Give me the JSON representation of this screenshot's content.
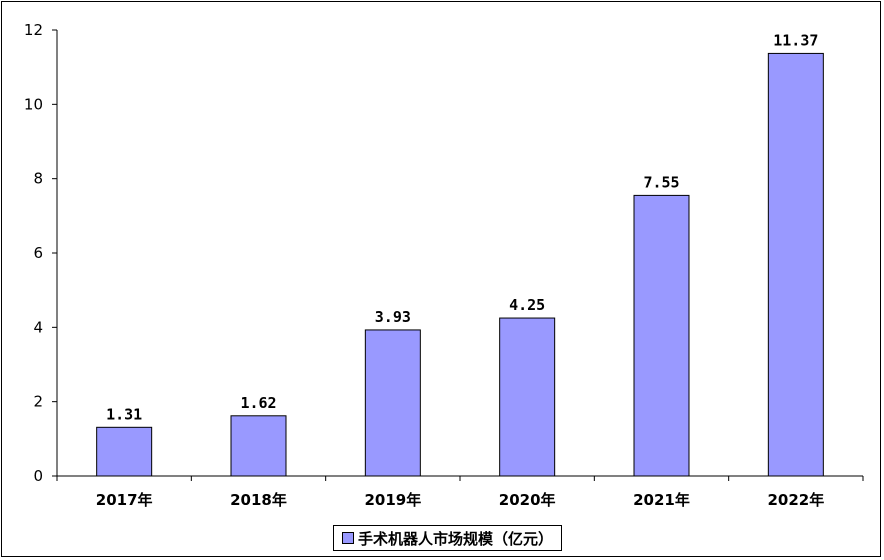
{
  "chart_data": {
    "type": "bar",
    "categories": [
      "2017年",
      "2018年",
      "2019年",
      "2020年",
      "2021年",
      "2022年"
    ],
    "series": [
      {
        "name": "手术机器人市场规模（亿元）",
        "values": [
          1.31,
          1.62,
          3.93,
          4.25,
          7.55,
          11.37
        ],
        "value_labels": [
          "1.31",
          "1.62",
          "3.93",
          "4.25",
          "7.55",
          "11.37"
        ]
      }
    ],
    "ylim": [
      0,
      12
    ],
    "yticks": [
      "0",
      "2",
      "4",
      "6",
      "8",
      "10",
      "12"
    ],
    "grid": false,
    "legend_position": "bottom-center",
    "colors": {
      "bar_fill": "#9999ff",
      "bar_stroke": "#000000"
    }
  }
}
